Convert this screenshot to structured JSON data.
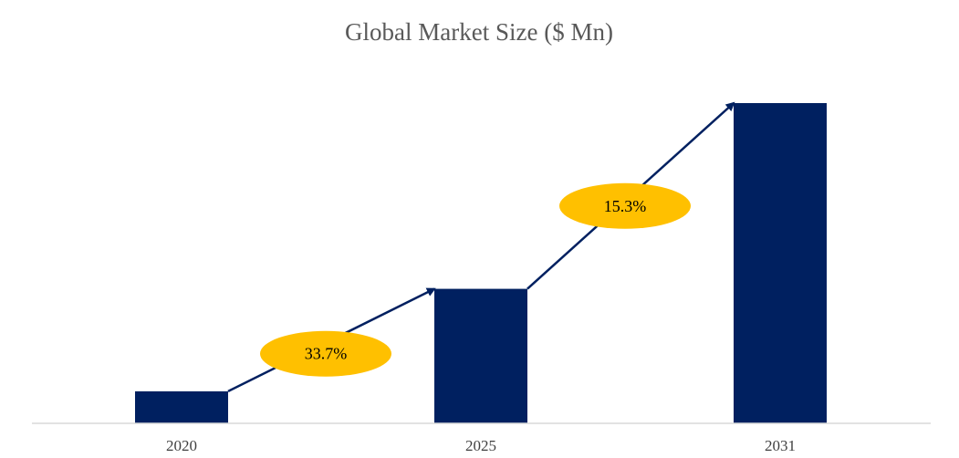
{
  "chart_data": {
    "type": "bar",
    "title": "Global Market Size ($ Mn)",
    "xlabel": "",
    "ylabel": "",
    "categories": [
      "2020",
      "2025",
      "2031"
    ],
    "values": [
      10,
      42,
      100
    ],
    "ylim": [
      0,
      100
    ],
    "grid": false,
    "legend": "none",
    "annotations": [
      {
        "label": "33.7%",
        "from": "2020",
        "to": "2025"
      },
      {
        "label": "15.3%",
        "from": "2025",
        "to": "2031"
      }
    ],
    "colors": {
      "bar": "#002060",
      "arrow": "#002060",
      "ellipse": "#FFC000",
      "axis": "#d9d9d9",
      "title": "#595959"
    }
  }
}
